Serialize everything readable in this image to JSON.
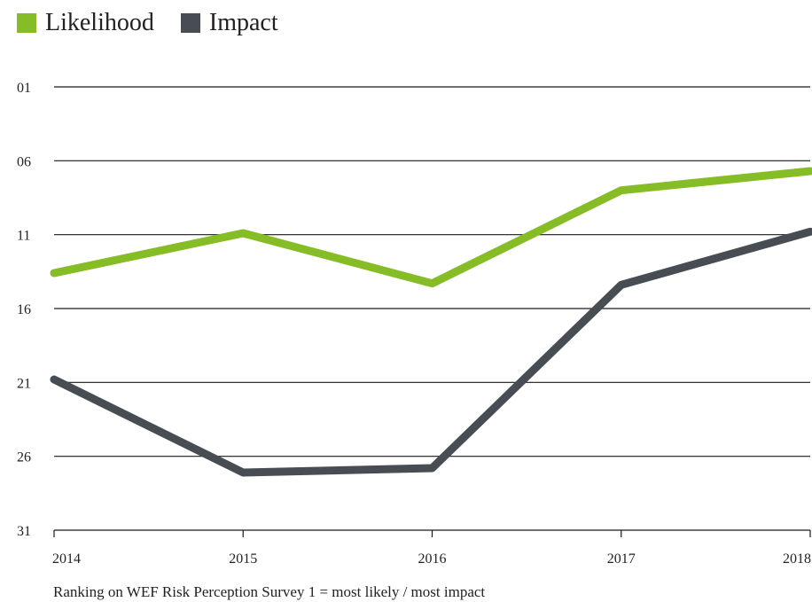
{
  "legend": {
    "items": [
      {
        "label": "Likelihood",
        "color": "#86bc25"
      },
      {
        "label": "Impact",
        "color": "#474d52"
      }
    ]
  },
  "footnote": "Ranking on WEF Risk Perception Survey 1 = most likely / most impact",
  "chart_data": {
    "type": "line",
    "x": [
      "2014",
      "2015",
      "2016",
      "2017",
      "2018"
    ],
    "y_ticks": [
      "01",
      "06",
      "11",
      "16",
      "21",
      "26",
      "31"
    ],
    "ylim": [
      1,
      31
    ],
    "y_inverted": true,
    "grid": true,
    "legend_position": "top-left",
    "series": [
      {
        "name": "Likelihood",
        "color": "#86bc25",
        "values": [
          13.6,
          10.9,
          14.3,
          8.0,
          6.7
        ]
      },
      {
        "name": "Impact",
        "color": "#474d52",
        "values": [
          20.8,
          27.1,
          26.8,
          14.4,
          10.8
        ]
      }
    ]
  }
}
